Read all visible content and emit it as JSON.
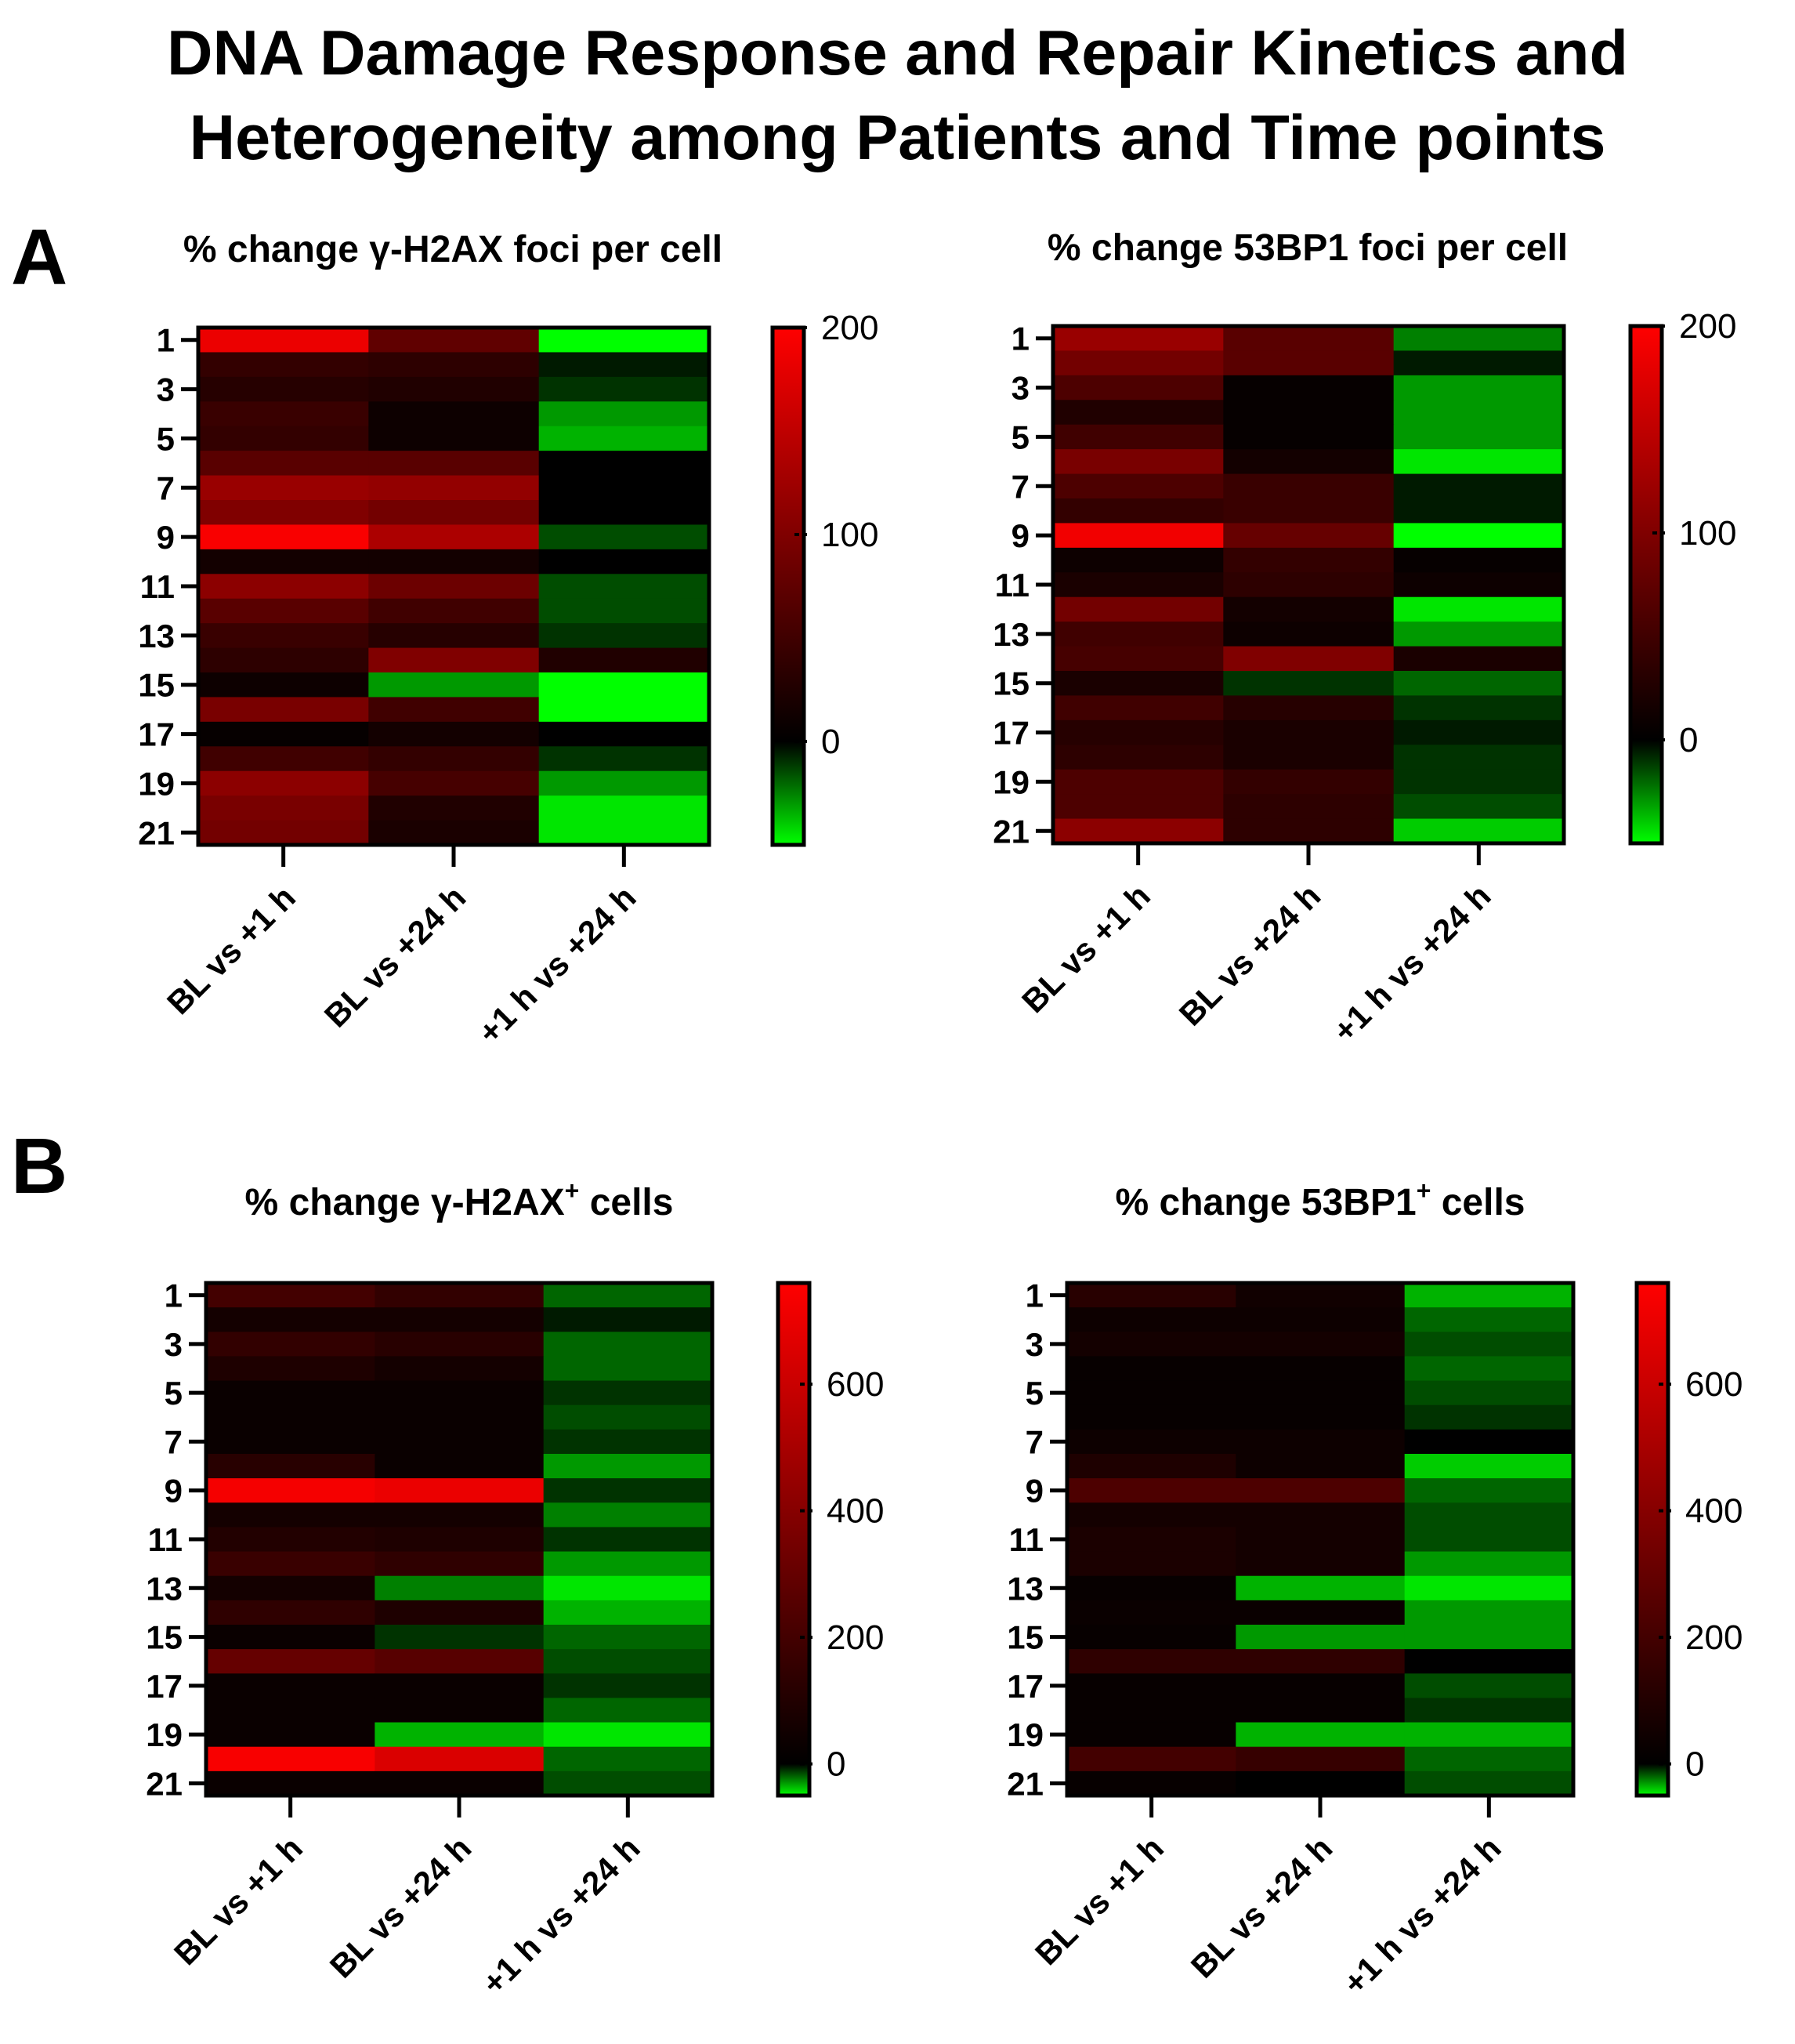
{
  "figure": {
    "title_line1": "DNA Damage Response and Repair Kinetics and",
    "title_line2": "Heterogeneity among Patients and Time points",
    "panel_a_label": "A",
    "panel_b_label": "B"
  },
  "colors": {
    "high": "#ff0000",
    "mid": "#000000",
    "low": "#00ff00"
  },
  "chart_data": [
    {
      "type": "heatmap",
      "panel": "A",
      "title": "% change γ-H2AX foci per cell",
      "title_main": "% change γ-H2AX foci per cell",
      "title_sup": "",
      "x_categories": [
        "BL vs +1 h",
        "BL vs +24 h",
        "+1 h vs +24 h"
      ],
      "y_ticks": [
        "1",
        "3",
        "5",
        "7",
        "9",
        "11",
        "13",
        "15",
        "17",
        "19",
        "21"
      ],
      "rows": 21,
      "values": [
        [
          185,
          75,
          -50
        ],
        [
          40,
          35,
          -5
        ],
        [
          30,
          25,
          -10
        ],
        [
          45,
          10,
          -30
        ],
        [
          40,
          10,
          -35
        ],
        [
          70,
          70,
          0
        ],
        [
          120,
          115,
          0
        ],
        [
          100,
          90,
          0
        ],
        [
          195,
          135,
          -15
        ],
        [
          15,
          15,
          0
        ],
        [
          110,
          85,
          -15
        ],
        [
          70,
          50,
          -15
        ],
        [
          45,
          30,
          -10
        ],
        [
          35,
          100,
          25
        ],
        [
          10,
          -30,
          -50
        ],
        [
          95,
          50,
          -50
        ],
        [
          5,
          15,
          0
        ],
        [
          50,
          40,
          -10
        ],
        [
          110,
          55,
          -30
        ],
        [
          95,
          25,
          -45
        ],
        [
          90,
          20,
          -45
        ]
      ],
      "colorbar": {
        "min": -50,
        "max": 200,
        "mid": 0,
        "ticks": [
          0,
          100,
          200
        ]
      }
    },
    {
      "type": "heatmap",
      "panel": "A",
      "title": "% change 53BP1 foci per cell",
      "title_main": "% change 53BP1 foci per cell",
      "title_sup": "",
      "x_categories": [
        "BL vs +1 h",
        "BL vs +24 h",
        "+1 h vs +24 h"
      ],
      "y_ticks": [
        "1",
        "3",
        "5",
        "7",
        "9",
        "11",
        "13",
        "15",
        "17",
        "19",
        "21"
      ],
      "rows": 21,
      "values": [
        [
          120,
          70,
          -25
        ],
        [
          90,
          70,
          -5
        ],
        [
          60,
          5,
          -30
        ],
        [
          25,
          5,
          -30
        ],
        [
          50,
          5,
          -30
        ],
        [
          95,
          15,
          -45
        ],
        [
          60,
          45,
          -5
        ],
        [
          40,
          45,
          -5
        ],
        [
          190,
          80,
          -50
        ],
        [
          10,
          40,
          5
        ],
        [
          20,
          35,
          10
        ],
        [
          90,
          15,
          -45
        ],
        [
          50,
          10,
          -30
        ],
        [
          55,
          100,
          20
        ],
        [
          20,
          -10,
          -20
        ],
        [
          50,
          30,
          -10
        ],
        [
          30,
          20,
          -5
        ],
        [
          35,
          20,
          -10
        ],
        [
          60,
          40,
          -10
        ],
        [
          60,
          35,
          -15
        ],
        [
          110,
          35,
          -40
        ]
      ],
      "colorbar": {
        "min": -50,
        "max": 200,
        "mid": 0,
        "ticks": [
          0,
          100,
          200
        ]
      }
    },
    {
      "type": "heatmap",
      "panel": "B",
      "title": "% change γ-H2AX+ cells",
      "title_main": "% change γ-H2AX",
      "title_sup": "+",
      "title_tail": "cells",
      "x_categories": [
        "BL vs +1 h",
        "BL vs +24 h",
        "+1 h vs +24 h"
      ],
      "y_ticks": [
        "1",
        "3",
        "5",
        "7",
        "9",
        "11",
        "13",
        "15",
        "17",
        "19",
        "21"
      ],
      "rows": 21,
      "values": [
        [
          200,
          150,
          -20
        ],
        [
          60,
          60,
          -5
        ],
        [
          150,
          120,
          -20
        ],
        [
          90,
          60,
          -20
        ],
        [
          30,
          30,
          -10
        ],
        [
          30,
          30,
          -15
        ],
        [
          30,
          30,
          -10
        ],
        [
          120,
          30,
          -30
        ],
        [
          730,
          700,
          -10
        ],
        [
          60,
          60,
          -25
        ],
        [
          100,
          90,
          -10
        ],
        [
          170,
          140,
          -30
        ],
        [
          60,
          -25,
          -45
        ],
        [
          140,
          90,
          -35
        ],
        [
          30,
          -10,
          -20
        ],
        [
          300,
          260,
          -15
        ],
        [
          30,
          30,
          -10
        ],
        [
          30,
          30,
          -20
        ],
        [
          30,
          -35,
          -45
        ],
        [
          740,
          650,
          -20
        ],
        [
          30,
          30,
          -15
        ]
      ],
      "colorbar": {
        "min": -50,
        "max": 760,
        "mid": 0,
        "ticks": [
          0,
          200,
          400,
          600
        ]
      }
    },
    {
      "type": "heatmap",
      "panel": "B",
      "title": "% change 53BP1+ cells",
      "title_main": "% change 53BP1",
      "title_sup": "+",
      "title_tail": "cells",
      "x_categories": [
        "BL vs +1 h",
        "BL vs +24 h",
        "+1 h vs +24 h"
      ],
      "y_ticks": [
        "1",
        "3",
        "5",
        "7",
        "9",
        "11",
        "13",
        "15",
        "17",
        "19",
        "21"
      ],
      "rows": 21,
      "values": [
        [
          120,
          50,
          -35
        ],
        [
          40,
          40,
          -20
        ],
        [
          60,
          60,
          -15
        ],
        [
          20,
          20,
          -20
        ],
        [
          20,
          20,
          -15
        ],
        [
          20,
          20,
          -10
        ],
        [
          40,
          40,
          0
        ],
        [
          90,
          40,
          -40
        ],
        [
          230,
          230,
          -20
        ],
        [
          60,
          60,
          -15
        ],
        [
          80,
          60,
          -15
        ],
        [
          80,
          60,
          -30
        ],
        [
          20,
          -35,
          -45
        ],
        [
          30,
          30,
          -30
        ],
        [
          20,
          -30,
          -30
        ],
        [
          140,
          140,
          0
        ],
        [
          20,
          20,
          -15
        ],
        [
          20,
          20,
          -10
        ],
        [
          20,
          -35,
          -35
        ],
        [
          200,
          160,
          -20
        ],
        [
          20,
          0,
          -15
        ]
      ],
      "colorbar": {
        "min": -50,
        "max": 760,
        "mid": 0,
        "ticks": [
          0,
          200,
          400,
          600
        ]
      }
    }
  ]
}
